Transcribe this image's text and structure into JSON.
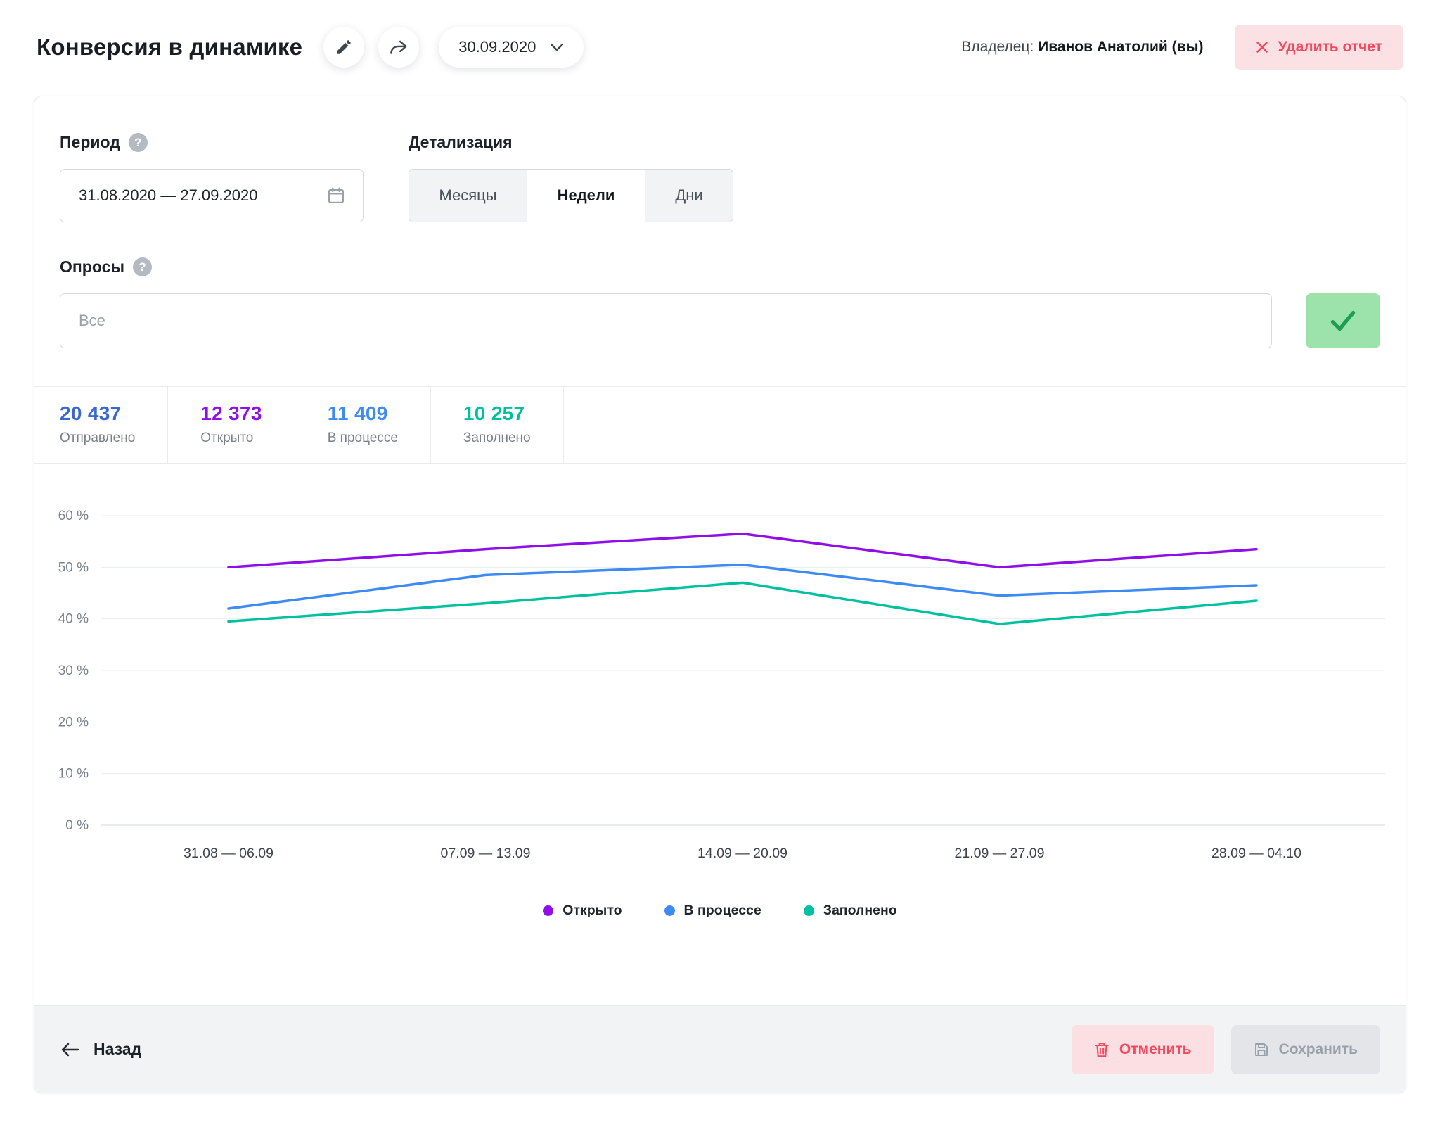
{
  "header": {
    "title": "Конверсия в динамике",
    "date_selector": "30.09.2020",
    "owner_label": "Владелец:",
    "owner_name": "Иванов Анатолий (вы)",
    "delete_button": "Удалить отчет"
  },
  "filters": {
    "period_label": "Период",
    "period_value": "31.08.2020 — 27.09.2020",
    "detail_label": "Детализация",
    "detail_options": [
      "Месяцы",
      "Недели",
      "Дни"
    ],
    "detail_active": "Недели",
    "surveys_label": "Опросы",
    "surveys_placeholder": "Все"
  },
  "stats": [
    {
      "value": "20 437",
      "label": "Отправлено",
      "color": "#3a68d2"
    },
    {
      "value": "12 373",
      "label": "Открыто",
      "color": "#8f0fe8"
    },
    {
      "value": "11 409",
      "label": "В процессе",
      "color": "#3d8af2"
    },
    {
      "value": "10 257",
      "label": "Заполнено",
      "color": "#00c0a0"
    }
  ],
  "chart_data": {
    "type": "line",
    "categories": [
      "31.08 — 06.09",
      "07.09 — 13.09",
      "14.09 — 20.09",
      "21.09 — 27.09",
      "28.09 — 04.10"
    ],
    "series": [
      {
        "name": "Открыто",
        "color": "#8f0fe8",
        "values": [
          50,
          53.5,
          56.5,
          50,
          53.5
        ]
      },
      {
        "name": "В процессе",
        "color": "#3d8af2",
        "values": [
          42,
          48.5,
          50.5,
          44.5,
          46.5
        ]
      },
      {
        "name": "Заполнено",
        "color": "#00c0a0",
        "values": [
          39.5,
          43,
          47,
          39,
          43.5
        ]
      }
    ],
    "ylim": [
      0,
      60
    ],
    "ytick_step": 10,
    "ytick_suffix": " %",
    "legend_position": "bottom",
    "grid": true
  },
  "footer": {
    "back_label": "Назад",
    "cancel_label": "Отменить",
    "save_label": "Сохранить"
  }
}
